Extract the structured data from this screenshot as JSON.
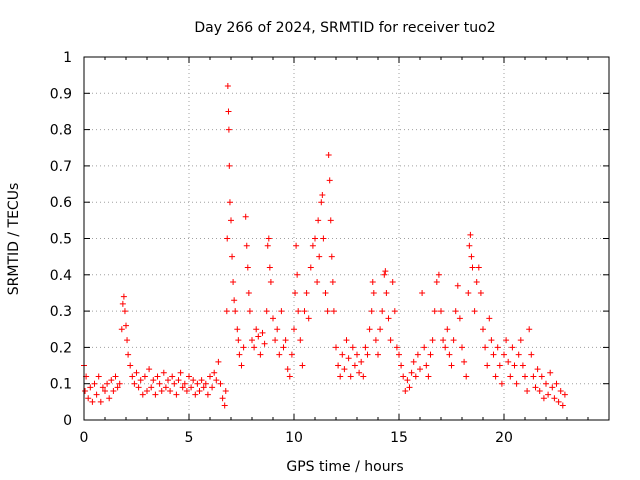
{
  "chart_data": {
    "type": "scatter",
    "title": "Day 266 of 2024, SRMTID for receiver tuo2",
    "xlabel": "GPS time / hours",
    "ylabel": "SRMTID / TECUs",
    "xlim": [
      0,
      25
    ],
    "ylim": [
      0,
      1
    ],
    "xticks": [
      "0",
      "5",
      "10",
      "15",
      "20"
    ],
    "xtick_values": [
      0,
      5,
      10,
      15,
      20
    ],
    "yticks": [
      "0",
      "0.1",
      "0.2",
      "0.3",
      "0.4",
      "0.5",
      "0.6",
      "0.7",
      "0.8",
      "0.9",
      "1"
    ],
    "ytick_values": [
      0,
      0.1,
      0.2,
      0.3,
      0.4,
      0.5,
      0.6,
      0.7,
      0.8,
      0.9,
      1.0
    ],
    "grid": true,
    "marker": "+",
    "series": [
      {
        "name": "SRMTID",
        "color": "#ff0000",
        "points": [
          [
            0.0,
            0.15
          ],
          [
            0.05,
            0.08
          ],
          [
            0.1,
            0.12
          ],
          [
            0.2,
            0.06
          ],
          [
            0.3,
            0.09
          ],
          [
            0.4,
            0.05
          ],
          [
            0.5,
            0.1
          ],
          [
            0.6,
            0.07
          ],
          [
            0.7,
            0.12
          ],
          [
            0.8,
            0.05
          ],
          [
            0.9,
            0.09
          ],
          [
            1.0,
            0.08
          ],
          [
            1.1,
            0.1
          ],
          [
            1.2,
            0.06
          ],
          [
            1.3,
            0.11
          ],
          [
            1.4,
            0.08
          ],
          [
            1.5,
            0.12
          ],
          [
            1.6,
            0.09
          ],
          [
            1.7,
            0.1
          ],
          [
            1.8,
            0.25
          ],
          [
            1.85,
            0.32
          ],
          [
            1.9,
            0.34
          ],
          [
            1.95,
            0.3
          ],
          [
            2.0,
            0.26
          ],
          [
            2.05,
            0.22
          ],
          [
            2.1,
            0.18
          ],
          [
            2.2,
            0.15
          ],
          [
            2.3,
            0.12
          ],
          [
            2.4,
            0.1
          ],
          [
            2.5,
            0.13
          ],
          [
            2.6,
            0.09
          ],
          [
            2.7,
            0.11
          ],
          [
            2.8,
            0.07
          ],
          [
            2.9,
            0.12
          ],
          [
            3.0,
            0.08
          ],
          [
            3.1,
            0.14
          ],
          [
            3.2,
            0.09
          ],
          [
            3.3,
            0.11
          ],
          [
            3.4,
            0.07
          ],
          [
            3.5,
            0.12
          ],
          [
            3.6,
            0.1
          ],
          [
            3.7,
            0.08
          ],
          [
            3.8,
            0.13
          ],
          [
            3.9,
            0.09
          ],
          [
            4.0,
            0.11
          ],
          [
            4.1,
            0.08
          ],
          [
            4.2,
            0.12
          ],
          [
            4.3,
            0.1
          ],
          [
            4.4,
            0.07
          ],
          [
            4.5,
            0.11
          ],
          [
            4.6,
            0.13
          ],
          [
            4.7,
            0.09
          ],
          [
            4.8,
            0.1
          ],
          [
            4.9,
            0.08
          ],
          [
            5.0,
            0.12
          ],
          [
            5.1,
            0.09
          ],
          [
            5.2,
            0.11
          ],
          [
            5.3,
            0.07
          ],
          [
            5.4,
            0.1
          ],
          [
            5.5,
            0.08
          ],
          [
            5.6,
            0.11
          ],
          [
            5.7,
            0.09
          ],
          [
            5.8,
            0.1
          ],
          [
            5.9,
            0.07
          ],
          [
            6.0,
            0.12
          ],
          [
            6.1,
            0.09
          ],
          [
            6.2,
            0.13
          ],
          [
            6.3,
            0.11
          ],
          [
            6.4,
            0.16
          ],
          [
            6.5,
            0.1
          ],
          [
            6.6,
            0.06
          ],
          [
            6.7,
            0.04
          ],
          [
            6.75,
            0.08
          ],
          [
            6.8,
            0.3
          ],
          [
            6.82,
            0.5
          ],
          [
            6.85,
            0.92
          ],
          [
            6.88,
            0.85
          ],
          [
            6.9,
            0.8
          ],
          [
            6.92,
            0.7
          ],
          [
            6.95,
            0.6
          ],
          [
            7.0,
            0.55
          ],
          [
            7.05,
            0.45
          ],
          [
            7.1,
            0.38
          ],
          [
            7.15,
            0.33
          ],
          [
            7.2,
            0.3
          ],
          [
            7.3,
            0.25
          ],
          [
            7.35,
            0.22
          ],
          [
            7.4,
            0.18
          ],
          [
            7.5,
            0.15
          ],
          [
            7.6,
            0.2
          ],
          [
            7.7,
            0.56
          ],
          [
            7.75,
            0.48
          ],
          [
            7.8,
            0.42
          ],
          [
            7.85,
            0.35
          ],
          [
            7.9,
            0.3
          ],
          [
            8.0,
            0.22
          ],
          [
            8.1,
            0.2
          ],
          [
            8.2,
            0.25
          ],
          [
            8.3,
            0.23
          ],
          [
            8.4,
            0.18
          ],
          [
            8.5,
            0.24
          ],
          [
            8.6,
            0.21
          ],
          [
            8.7,
            0.3
          ],
          [
            8.75,
            0.48
          ],
          [
            8.8,
            0.5
          ],
          [
            8.85,
            0.42
          ],
          [
            8.9,
            0.38
          ],
          [
            9.0,
            0.28
          ],
          [
            9.1,
            0.22
          ],
          [
            9.2,
            0.25
          ],
          [
            9.3,
            0.18
          ],
          [
            9.4,
            0.3
          ],
          [
            9.5,
            0.2
          ],
          [
            9.6,
            0.22
          ],
          [
            9.7,
            0.14
          ],
          [
            9.8,
            0.12
          ],
          [
            9.9,
            0.18
          ],
          [
            10.0,
            0.25
          ],
          [
            10.05,
            0.35
          ],
          [
            10.1,
            0.48
          ],
          [
            10.15,
            0.4
          ],
          [
            10.2,
            0.3
          ],
          [
            10.3,
            0.22
          ],
          [
            10.4,
            0.15
          ],
          [
            10.5,
            0.3
          ],
          [
            10.6,
            0.35
          ],
          [
            10.7,
            0.28
          ],
          [
            10.8,
            0.42
          ],
          [
            10.9,
            0.48
          ],
          [
            11.0,
            0.5
          ],
          [
            11.1,
            0.38
          ],
          [
            11.15,
            0.55
          ],
          [
            11.2,
            0.45
          ],
          [
            11.3,
            0.6
          ],
          [
            11.35,
            0.62
          ],
          [
            11.4,
            0.5
          ],
          [
            11.5,
            0.35
          ],
          [
            11.6,
            0.3
          ],
          [
            11.65,
            0.73
          ],
          [
            11.7,
            0.66
          ],
          [
            11.75,
            0.55
          ],
          [
            11.8,
            0.45
          ],
          [
            11.85,
            0.38
          ],
          [
            11.9,
            0.3
          ],
          [
            12.0,
            0.2
          ],
          [
            12.1,
            0.15
          ],
          [
            12.2,
            0.12
          ],
          [
            12.3,
            0.18
          ],
          [
            12.4,
            0.14
          ],
          [
            12.5,
            0.22
          ],
          [
            12.6,
            0.17
          ],
          [
            12.7,
            0.12
          ],
          [
            12.8,
            0.2
          ],
          [
            12.9,
            0.15
          ],
          [
            13.0,
            0.18
          ],
          [
            13.1,
            0.13
          ],
          [
            13.2,
            0.16
          ],
          [
            13.3,
            0.12
          ],
          [
            13.4,
            0.2
          ],
          [
            13.5,
            0.18
          ],
          [
            13.6,
            0.25
          ],
          [
            13.7,
            0.3
          ],
          [
            13.75,
            0.38
          ],
          [
            13.8,
            0.35
          ],
          [
            13.9,
            0.22
          ],
          [
            14.0,
            0.18
          ],
          [
            14.1,
            0.25
          ],
          [
            14.2,
            0.3
          ],
          [
            14.3,
            0.4
          ],
          [
            14.35,
            0.41
          ],
          [
            14.4,
            0.35
          ],
          [
            14.5,
            0.28
          ],
          [
            14.6,
            0.22
          ],
          [
            14.7,
            0.38
          ],
          [
            14.8,
            0.3
          ],
          [
            14.9,
            0.2
          ],
          [
            15.0,
            0.18
          ],
          [
            15.1,
            0.15
          ],
          [
            15.2,
            0.12
          ],
          [
            15.3,
            0.08
          ],
          [
            15.4,
            0.11
          ],
          [
            15.5,
            0.09
          ],
          [
            15.6,
            0.13
          ],
          [
            15.7,
            0.16
          ],
          [
            15.8,
            0.12
          ],
          [
            15.9,
            0.18
          ],
          [
            16.0,
            0.14
          ],
          [
            16.1,
            0.35
          ],
          [
            16.2,
            0.2
          ],
          [
            16.3,
            0.15
          ],
          [
            16.4,
            0.12
          ],
          [
            16.5,
            0.18
          ],
          [
            16.6,
            0.22
          ],
          [
            16.7,
            0.3
          ],
          [
            16.8,
            0.38
          ],
          [
            16.9,
            0.4
          ],
          [
            17.0,
            0.3
          ],
          [
            17.1,
            0.22
          ],
          [
            17.2,
            0.2
          ],
          [
            17.3,
            0.25
          ],
          [
            17.4,
            0.18
          ],
          [
            17.5,
            0.15
          ],
          [
            17.6,
            0.22
          ],
          [
            17.7,
            0.3
          ],
          [
            17.8,
            0.37
          ],
          [
            17.9,
            0.28
          ],
          [
            18.0,
            0.2
          ],
          [
            18.1,
            0.16
          ],
          [
            18.2,
            0.12
          ],
          [
            18.3,
            0.35
          ],
          [
            18.35,
            0.48
          ],
          [
            18.4,
            0.51
          ],
          [
            18.45,
            0.45
          ],
          [
            18.5,
            0.42
          ],
          [
            18.6,
            0.3
          ],
          [
            18.7,
            0.38
          ],
          [
            18.8,
            0.42
          ],
          [
            18.9,
            0.35
          ],
          [
            19.0,
            0.25
          ],
          [
            19.1,
            0.2
          ],
          [
            19.2,
            0.15
          ],
          [
            19.3,
            0.28
          ],
          [
            19.4,
            0.22
          ],
          [
            19.5,
            0.18
          ],
          [
            19.6,
            0.12
          ],
          [
            19.7,
            0.2
          ],
          [
            19.8,
            0.15
          ],
          [
            19.9,
            0.1
          ],
          [
            20.0,
            0.18
          ],
          [
            20.1,
            0.22
          ],
          [
            20.2,
            0.16
          ],
          [
            20.3,
            0.12
          ],
          [
            20.4,
            0.2
          ],
          [
            20.5,
            0.15
          ],
          [
            20.6,
            0.1
          ],
          [
            20.7,
            0.18
          ],
          [
            20.8,
            0.22
          ],
          [
            20.9,
            0.15
          ],
          [
            21.0,
            0.12
          ],
          [
            21.1,
            0.08
          ],
          [
            21.2,
            0.25
          ],
          [
            21.3,
            0.18
          ],
          [
            21.4,
            0.12
          ],
          [
            21.5,
            0.09
          ],
          [
            21.6,
            0.14
          ],
          [
            21.7,
            0.08
          ],
          [
            21.8,
            0.12
          ],
          [
            21.9,
            0.06
          ],
          [
            22.0,
            0.1
          ],
          [
            22.1,
            0.07
          ],
          [
            22.2,
            0.13
          ],
          [
            22.3,
            0.09
          ],
          [
            22.4,
            0.06
          ],
          [
            22.5,
            0.1
          ],
          [
            22.6,
            0.05
          ],
          [
            22.7,
            0.08
          ],
          [
            22.8,
            0.04
          ],
          [
            22.9,
            0.07
          ]
        ]
      }
    ]
  }
}
